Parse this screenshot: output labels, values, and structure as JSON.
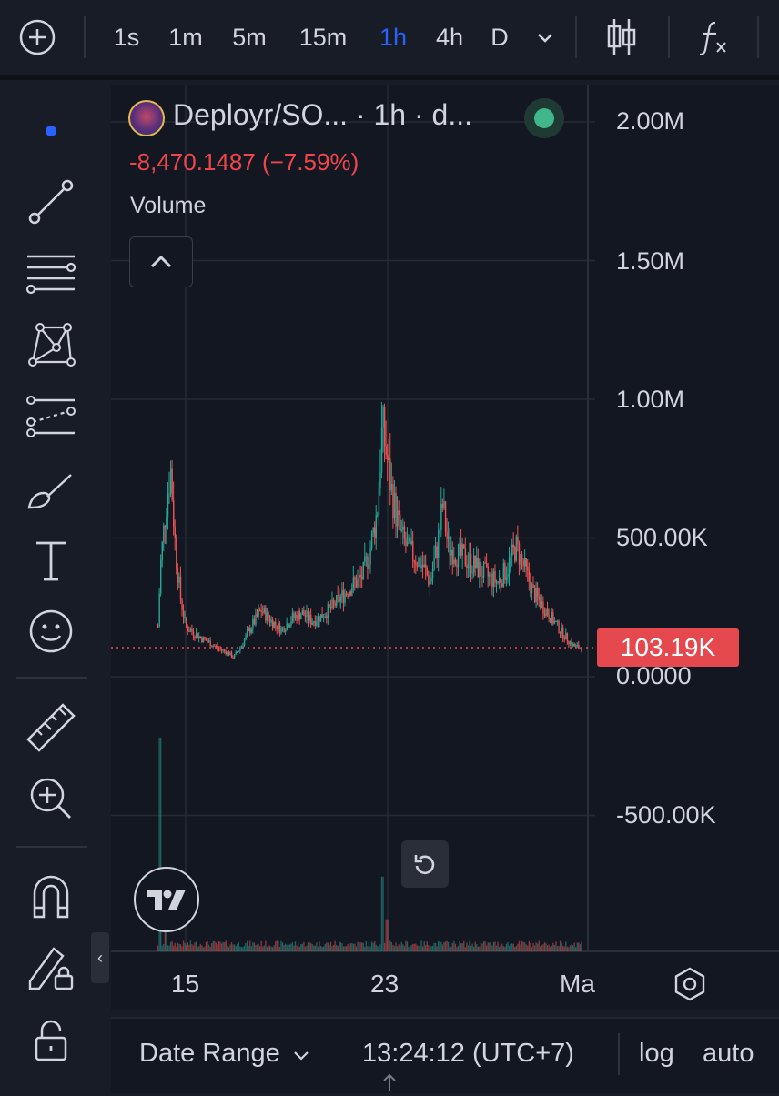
{
  "colors": {
    "background": "#131722",
    "up": "#26a69a",
    "down": "#ef5350",
    "active": "#2962ff",
    "last_price": "#e5484d",
    "text": "#d1d4dc"
  },
  "toolbar": {
    "add_icon": "plus-circle-icon",
    "intervals": [
      "1s",
      "1m",
      "5m",
      "15m",
      "1h",
      "4h",
      "D"
    ],
    "active_interval": "1h",
    "chart_type_icon": "candles-icon",
    "indicators_icon": "fx-icon"
  },
  "drawing_tools": [
    "cursor-dot-icon",
    "trend-line-icon",
    "fib-lines-icon",
    "pattern-icon",
    "prediction-icon",
    "brush-icon",
    "text-icon",
    "emoji-icon",
    "ruler-icon",
    "zoom-in-icon",
    "magnet-icon",
    "lock-drawing-icon",
    "unlock-icon"
  ],
  "legend": {
    "symbol": "Deployr/SO... · 1h · d...",
    "change": "-8,470.1487 (−7.59%)",
    "volume_label": "Volume"
  },
  "price_axis": {
    "labels": [
      "2.00M",
      "1.50M",
      "1.00M",
      "500.00K",
      "0.0000",
      "-500.00K"
    ],
    "last_price": "103.19K"
  },
  "time_axis": {
    "labels": [
      "15",
      "23",
      "Ma"
    ]
  },
  "bottom": {
    "date_range": "Date Range",
    "time": "13:24:12 (UTC+7)",
    "log": "log",
    "auto": "auto"
  },
  "chart_data": {
    "type": "candlestick",
    "title": "",
    "x": [
      "15",
      "23",
      "Ma"
    ],
    "ylim": [
      -700000,
      2100000
    ],
    "y_ticks": [
      2000000,
      1500000,
      1000000,
      500000,
      0,
      -500000
    ],
    "last_price": 103190,
    "close_trace": [
      [
        13.9,
        180000
      ],
      [
        14.0,
        400000
      ],
      [
        14.2,
        600000
      ],
      [
        14.4,
        750000
      ],
      [
        14.6,
        450000
      ],
      [
        14.8,
        280000
      ],
      [
        15.0,
        180000
      ],
      [
        15.3,
        160000
      ],
      [
        15.6,
        140000
      ],
      [
        16.0,
        120000
      ],
      [
        16.3,
        100000
      ],
      [
        16.6,
        90000
      ],
      [
        16.9,
        70000
      ],
      [
        17.2,
        110000
      ],
      [
        17.6,
        180000
      ],
      [
        18.0,
        240000
      ],
      [
        18.4,
        200000
      ],
      [
        18.8,
        170000
      ],
      [
        19.2,
        210000
      ],
      [
        19.6,
        230000
      ],
      [
        20.0,
        200000
      ],
      [
        20.4,
        220000
      ],
      [
        20.8,
        250000
      ],
      [
        21.2,
        290000
      ],
      [
        21.6,
        330000
      ],
      [
        22.0,
        360000
      ],
      [
        22.3,
        450000
      ],
      [
        22.6,
        600000
      ],
      [
        22.8,
        900000
      ],
      [
        23.0,
        780000
      ],
      [
        23.2,
        650000
      ],
      [
        23.5,
        520000
      ],
      [
        23.8,
        460000
      ],
      [
        24.1,
        430000
      ],
      [
        24.4,
        400000
      ],
      [
        24.7,
        340000
      ],
      [
        25.0,
        480000
      ],
      [
        25.2,
        620000
      ],
      [
        25.4,
        470000
      ],
      [
        25.8,
        440000
      ],
      [
        26.2,
        420000
      ],
      [
        26.6,
        390000
      ],
      [
        27.0,
        360000
      ],
      [
        27.4,
        340000
      ],
      [
        27.8,
        400000
      ],
      [
        28.1,
        470000
      ],
      [
        28.4,
        400000
      ],
      [
        28.8,
        300000
      ],
      [
        29.2,
        250000
      ],
      [
        29.6,
        200000
      ],
      [
        30.0,
        150000
      ],
      [
        30.4,
        110000
      ],
      [
        30.7,
        103190
      ]
    ],
    "volume_spikes": [
      [
        14.0,
        1
      ],
      [
        14.2,
        0.3
      ],
      [
        22.8,
        0.35
      ],
      [
        23.0,
        0.15
      ]
    ]
  }
}
